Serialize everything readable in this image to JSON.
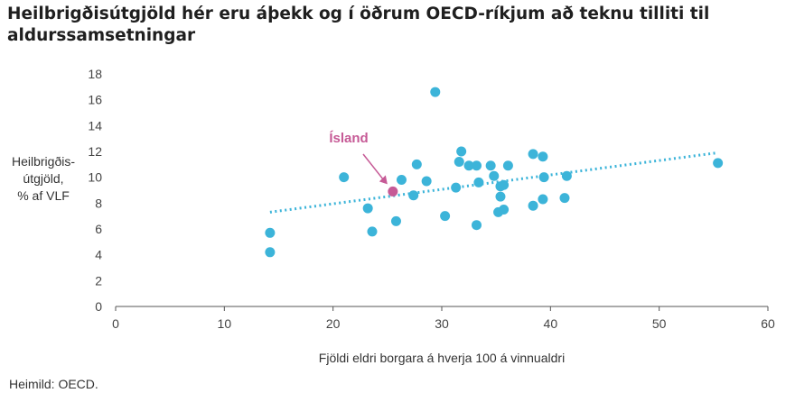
{
  "title": "Heilbrigðisútgjöld hér eru áþekk og í öðrum OECD-ríkjum að teknu tilliti til aldurssamsetningar",
  "source": "Heimild: OECD.",
  "colors": {
    "points": "#3cb4d9",
    "highlight": "#c65a96",
    "trend": "#3cb4d9",
    "axis": "#555555"
  },
  "chart_data": {
    "type": "scatter",
    "xlabel": "Fjöldi eldri borgara á hverja 100 á vinnualdri",
    "ylabel_lines": [
      "Heilbrigðis-",
      "útgjöld,",
      "% af VLF"
    ],
    "xlim": [
      0,
      60
    ],
    "ylim": [
      0,
      18
    ],
    "x_ticks": [
      "0",
      "10",
      "20",
      "30",
      "40",
      "50",
      "60"
    ],
    "y_ticks": [
      "0",
      "2",
      "4",
      "6",
      "8",
      "10",
      "12",
      "14",
      "16",
      "18"
    ],
    "grid": false,
    "points": [
      [
        14.2,
        5.7
      ],
      [
        14.2,
        4.2
      ],
      [
        21.0,
        10.0
      ],
      [
        23.2,
        7.6
      ],
      [
        23.6,
        5.8
      ],
      [
        25.8,
        6.6
      ],
      [
        26.3,
        9.8
      ],
      [
        27.4,
        8.6
      ],
      [
        27.7,
        11.0
      ],
      [
        28.6,
        9.7
      ],
      [
        29.4,
        16.6
      ],
      [
        30.3,
        7.0
      ],
      [
        31.3,
        9.2
      ],
      [
        31.6,
        11.2
      ],
      [
        31.8,
        12.0
      ],
      [
        32.5,
        10.9
      ],
      [
        33.2,
        10.9
      ],
      [
        33.2,
        6.3
      ],
      [
        33.4,
        9.6
      ],
      [
        34.5,
        10.9
      ],
      [
        34.8,
        10.1
      ],
      [
        35.2,
        7.3
      ],
      [
        35.4,
        8.5
      ],
      [
        35.4,
        9.3
      ],
      [
        35.7,
        9.4
      ],
      [
        35.7,
        7.5
      ],
      [
        36.1,
        10.9
      ],
      [
        38.4,
        11.8
      ],
      [
        38.4,
        7.8
      ],
      [
        39.3,
        11.6
      ],
      [
        39.3,
        8.3
      ],
      [
        39.4,
        10.0
      ],
      [
        41.3,
        8.4
      ],
      [
        41.5,
        10.1
      ],
      [
        55.4,
        11.1
      ]
    ],
    "highlight": {
      "label": "Ísland",
      "x": 25.5,
      "y": 8.9
    },
    "trendline": {
      "x": [
        14.2,
        55.4
      ],
      "y": [
        7.3,
        11.9
      ]
    }
  }
}
